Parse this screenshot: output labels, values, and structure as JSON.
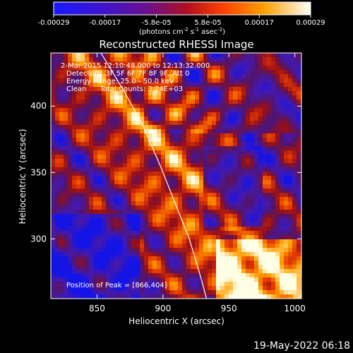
{
  "chart_data": {
    "type": "heatmap",
    "title": "Reconstructed RHESSI Image",
    "xlabel": "Heliocentric X (arcsec)",
    "ylabel": "Heliocentric Y (arcsec)",
    "xlim": [
      815,
      1005
    ],
    "ylim": [
      255,
      440
    ],
    "x_ticks": [
      850,
      900,
      950,
      1000
    ],
    "y_ticks": [
      300,
      350,
      400
    ],
    "colorbar": {
      "tick_labels": [
        "-0.00029",
        "-0.00017",
        "-5.8e-05",
        "5.8e-05",
        "0.00017",
        "0.00029"
      ],
      "unit_prefix": "(photons cm",
      "unit_exp1": "-2",
      "unit_mid": " s",
      "unit_exp2": "-1",
      "unit_mid2": " asec",
      "unit_exp3": "-2",
      "unit_suffix": ")",
      "colors": [
        "#1a1aff",
        "#4a10c0",
        "#6a1080",
        "#c01010",
        "#ff6000",
        "#ffb000",
        "#ffffff"
      ]
    },
    "annotations": [
      "2-Mar-2015 12:10:48.000 to 12:13:32.000",
      "Detectors: 3F 5F 6F 7F 8F 9F, Att 0",
      "Energy Range: 25.0 - 50.0 keV",
      "Clean      Total Counts: 3.24E+03"
    ],
    "peak_label": "Position of Peak = [866,404]",
    "limb_curve": [
      [
        853,
        440
      ],
      [
        870,
        412
      ],
      [
        885,
        385
      ],
      [
        898,
        355
      ],
      [
        910,
        325
      ],
      [
        920,
        300
      ],
      [
        929,
        270
      ],
      [
        933,
        255
      ]
    ]
  },
  "footer": {
    "date": "19-May-2022 06:18"
  }
}
